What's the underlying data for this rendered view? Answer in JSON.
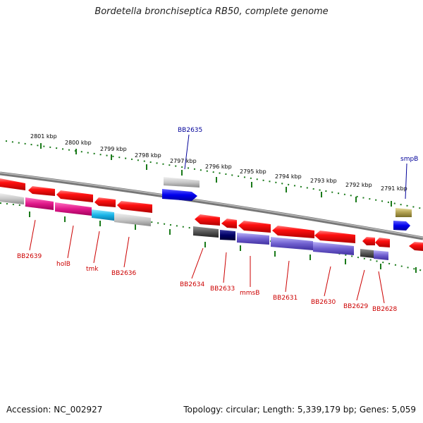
{
  "title": "Bordetella bronchiseptica RB50, complete genome",
  "footer": {
    "accession": "Accession: NC_002927",
    "summary": "Topology: circular; Length: 5,339,179 bp; Genes: 5,059"
  },
  "colors": {
    "red": "#e30000",
    "grey": "#9a9a9a",
    "dark_grey": "#555555",
    "light_grey": "#c8c8c8",
    "magenta": "#e0188a",
    "cyan": "#19b4e8",
    "navy": "#000066",
    "violet": "#7060d0",
    "blue": "#0000ee",
    "olive": "#b0a050",
    "tick_green": "#1a7a1a",
    "label_red": "#cc0000",
    "label_blue": "#000099"
  },
  "scale_labels": [
    "2801 kbp",
    "2800 kbp",
    "2799 kbp",
    "2798 kbp",
    "2797 kbp",
    "2796 kbp",
    "2795 kbp",
    "2794 kbp",
    "2793 kbp",
    "2792 kbp",
    "2791 kbp"
  ],
  "gene_labels_top": [
    "BB2635",
    "smpB"
  ],
  "gene_labels_bottom": [
    "BB2639",
    "holB",
    "tmk",
    "BB2636",
    "BB2634",
    "BB2633",
    "mmsB",
    "BB2631",
    "BB2630",
    "BB2629",
    "BB2628"
  ]
}
